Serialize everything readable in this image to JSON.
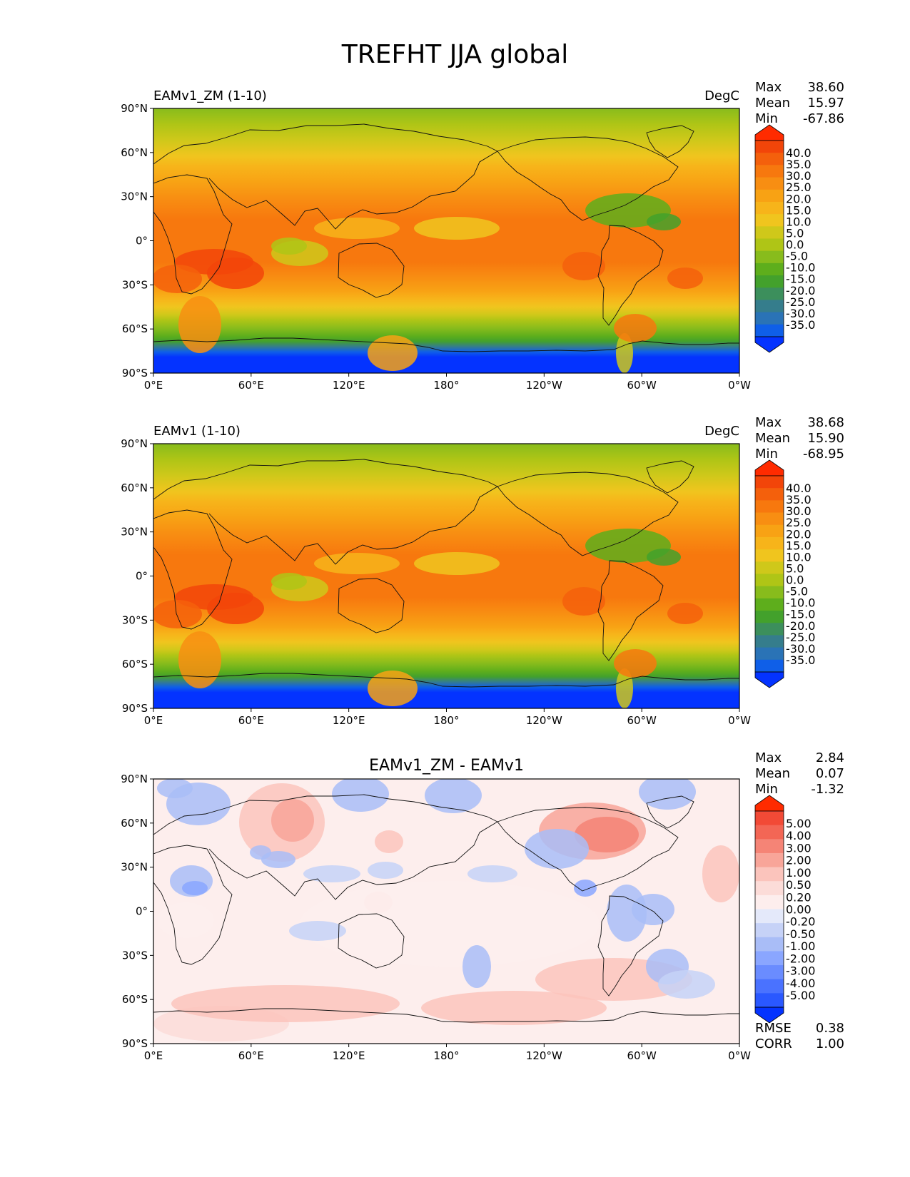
{
  "title": "TREFHT JJA global",
  "x_ticks": [
    "0°E",
    "60°E",
    "120°E",
    "180°",
    "120°W",
    "60°W",
    "0°W"
  ],
  "y_ticks": [
    "90°N",
    "60°N",
    "30°N",
    "0°",
    "30°S",
    "60°S",
    "90°S"
  ],
  "panels": [
    {
      "left_title": "EAMv1_ZM (1-10)",
      "center_title": "",
      "units": "DegC",
      "stats": [
        {
          "label": "Max",
          "value": "38.60"
        },
        {
          "label": "Mean",
          "value": "15.97"
        },
        {
          "label": "Min",
          "value": "-67.86"
        }
      ],
      "extra_stats": [],
      "colorbar": {
        "labels": [
          "40.0",
          "35.0",
          "30.0",
          "25.0",
          "20.0",
          "15.0",
          "10.0",
          "5.0",
          "0.0",
          "-5.0",
          "-10.0",
          "-15.0",
          "-20.0",
          "-25.0",
          "-30.0",
          "-35.0"
        ],
        "colors": [
          "#0433ff",
          "#0f5fe8",
          "#2a73b6",
          "#357d8c",
          "#3c8f5c",
          "#43a12c",
          "#5eae1c",
          "#88bc1c",
          "#afc516",
          "#cfc81a",
          "#f0c51e",
          "#f7b41a",
          "#f8a214",
          "#f88e12",
          "#f7780e",
          "#f4600c",
          "#f24509",
          "#ff2b00"
        ]
      }
    },
    {
      "left_title": "EAMv1 (1-10)",
      "center_title": "",
      "units": "DegC",
      "stats": [
        {
          "label": "Max",
          "value": "38.68"
        },
        {
          "label": "Mean",
          "value": "15.90"
        },
        {
          "label": "Min",
          "value": "-68.95"
        }
      ],
      "extra_stats": [],
      "colorbar": {
        "labels": [
          "40.0",
          "35.0",
          "30.0",
          "25.0",
          "20.0",
          "15.0",
          "10.0",
          "5.0",
          "0.0",
          "-5.0",
          "-10.0",
          "-15.0",
          "-20.0",
          "-25.0",
          "-30.0",
          "-35.0"
        ],
        "colors": [
          "#0433ff",
          "#0f5fe8",
          "#2a73b6",
          "#357d8c",
          "#3c8f5c",
          "#43a12c",
          "#5eae1c",
          "#88bc1c",
          "#afc516",
          "#cfc81a",
          "#f0c51e",
          "#f7b41a",
          "#f8a214",
          "#f88e12",
          "#f7780e",
          "#f4600c",
          "#f24509",
          "#ff2b00"
        ]
      }
    },
    {
      "left_title": "",
      "center_title": "EAMv1_ZM - EAMv1",
      "units": "",
      "stats": [
        {
          "label": "Max",
          "value": "2.84"
        },
        {
          "label": "Mean",
          "value": "0.07"
        },
        {
          "label": "Min",
          "value": "-1.32"
        }
      ],
      "extra_stats": [
        {
          "label": "RMSE",
          "value": "0.38"
        },
        {
          "label": "CORR",
          "value": "1.00"
        }
      ],
      "colorbar": {
        "labels": [
          "5.00",
          "4.00",
          "3.00",
          "2.00",
          "1.00",
          "0.50",
          "0.20",
          "0.00",
          "-0.20",
          "-0.50",
          "-1.00",
          "-2.00",
          "-3.00",
          "-4.00",
          "-5.00"
        ],
        "colors": [
          "#0433ff",
          "#2a58ff",
          "#4a72ff",
          "#6a8cff",
          "#8aa6ff",
          "#a9bdf7",
          "#c6d2f7",
          "#e4e9fa",
          "#fdeeed",
          "#fcdcd8",
          "#fbc4bc",
          "#f8a599",
          "#f58476",
          "#f36655",
          "#f24a36",
          "#ff2b00"
        ]
      }
    }
  ]
}
